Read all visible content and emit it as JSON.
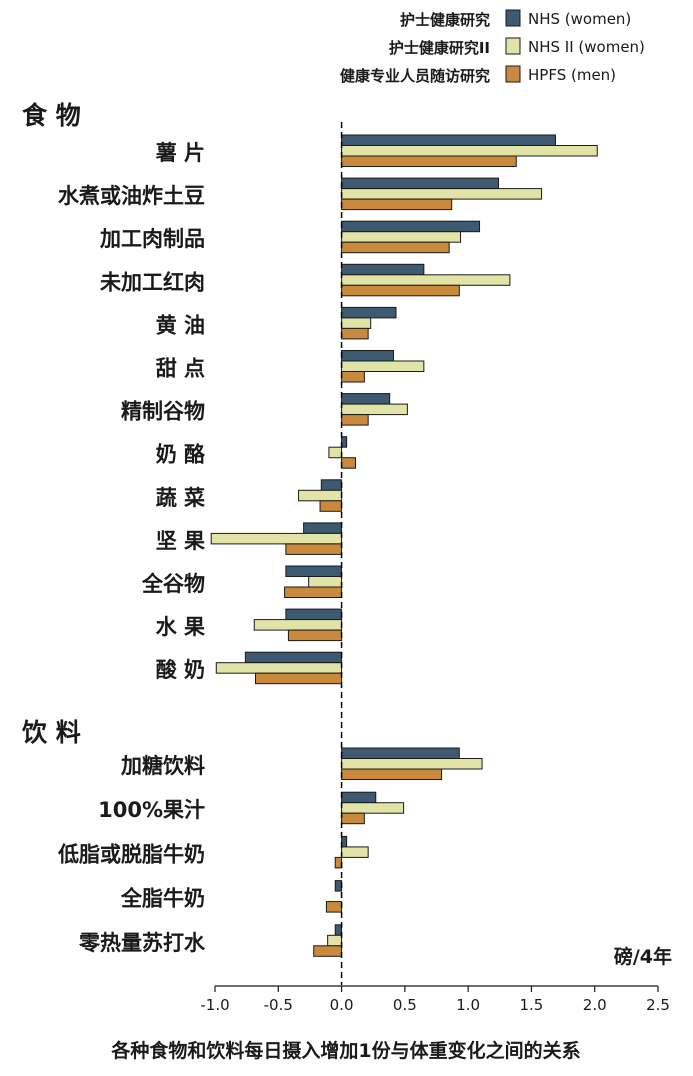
{
  "chart_data": {
    "type": "bar",
    "orientation": "horizontal",
    "title": "各种食物和饮料每日摄入增加1份与体重变化之间的关系",
    "unit": "磅/4年",
    "xlim": [
      -1.0,
      2.5
    ],
    "xticks": [
      "-1.0",
      "-0.5",
      "0.0",
      "0.5",
      "1.0",
      "1.5",
      "2.0",
      "2.5"
    ],
    "legend_position": "top-right",
    "legend": {
      "cn_labels": [
        "护士健康研究",
        "护士健康研究II",
        "健康专业人员随访研究"
      ]
    },
    "series": [
      {
        "name": "NHS (women)",
        "color": "#3e5a70"
      },
      {
        "name": "NHS II (women)",
        "color": "#e1e3a7"
      },
      {
        "name": "HPFS (men)",
        "color": "#c98a3e"
      }
    ],
    "groups": [
      {
        "label": "食 物",
        "categories": [
          {
            "label": "薯 片",
            "values": [
              1.69,
              2.02,
              1.38
            ]
          },
          {
            "label": "水煮或油炸土豆",
            "values": [
              1.24,
              1.58,
              0.87
            ]
          },
          {
            "label": "加工肉制品",
            "values": [
              1.09,
              0.94,
              0.85
            ]
          },
          {
            "label": "未加工红肉",
            "values": [
              0.65,
              1.33,
              0.93
            ]
          },
          {
            "label": "黄 油",
            "values": [
              0.43,
              0.23,
              0.21
            ]
          },
          {
            "label": "甜 点",
            "values": [
              0.41,
              0.65,
              0.18
            ]
          },
          {
            "label": "精制谷物",
            "values": [
              0.38,
              0.52,
              0.21
            ]
          },
          {
            "label": "奶 酪",
            "values": [
              0.04,
              -0.1,
              0.11
            ]
          },
          {
            "label": "蔬 菜",
            "values": [
              -0.16,
              -0.34,
              -0.17
            ]
          },
          {
            "label": "坚 果",
            "values": [
              -0.3,
              -1.03,
              -0.44
            ]
          },
          {
            "label": "全谷物",
            "values": [
              -0.44,
              -0.26,
              -0.45
            ]
          },
          {
            "label": "水 果",
            "values": [
              -0.44,
              -0.69,
              -0.42
            ]
          },
          {
            "label": "酸 奶",
            "values": [
              -0.76,
              -0.99,
              -0.68
            ]
          }
        ]
      },
      {
        "label": "饮 料",
        "categories": [
          {
            "label": "加糖饮料",
            "values": [
              0.93,
              1.11,
              0.79
            ]
          },
          {
            "label": "100%果汁",
            "values": [
              0.27,
              0.49,
              0.18
            ]
          },
          {
            "label": "低脂或脱脂牛奶",
            "values": [
              0.04,
              0.21,
              -0.05
            ]
          },
          {
            "label": "全脂牛奶",
            "values": [
              -0.05,
              0.0,
              -0.12
            ]
          },
          {
            "label": "零热量苏打水",
            "values": [
              -0.05,
              -0.11,
              -0.22
            ]
          }
        ]
      }
    ]
  }
}
